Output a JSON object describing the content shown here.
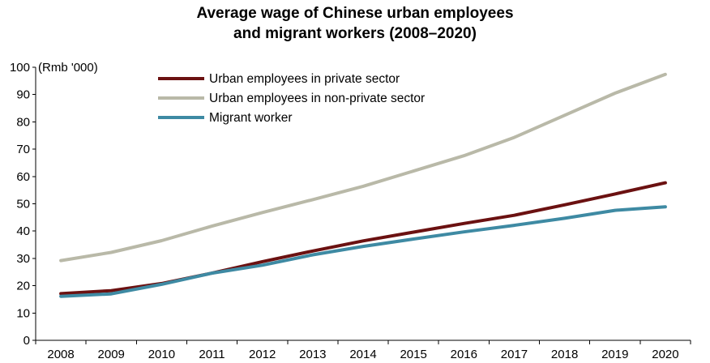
{
  "chart_data": {
    "type": "line",
    "title_lines": [
      "Average wage of Chinese urban employees",
      "and migrant workers (2008–2020)"
    ],
    "y_unit_label": "(Rmb '000)",
    "x": [
      "2008",
      "2009",
      "2010",
      "2011",
      "2012",
      "2013",
      "2014",
      "2015",
      "2016",
      "2017",
      "2018",
      "2019",
      "2020"
    ],
    "ylim": [
      0,
      100
    ],
    "yticks": [
      "0",
      "10",
      "20",
      "30",
      "40",
      "50",
      "60",
      "70",
      "80",
      "90",
      "100"
    ],
    "grid": false,
    "legend_position": "top-left",
    "series": [
      {
        "name": "Urban employees in private sector",
        "color": "#6b1111",
        "values": [
          17.1,
          18.2,
          20.8,
          24.6,
          28.8,
          32.7,
          36.4,
          39.6,
          42.8,
          45.8,
          49.6,
          53.6,
          57.7
        ]
      },
      {
        "name": "Urban employees in non-private sector",
        "color": "#b9b9a8",
        "values": [
          29.2,
          32.2,
          36.5,
          41.8,
          46.8,
          51.5,
          56.4,
          62.0,
          67.6,
          74.3,
          82.4,
          90.5,
          97.4
        ]
      },
      {
        "name": "Migrant worker",
        "color": "#3e8aa3",
        "values": [
          16.1,
          17.0,
          20.5,
          24.6,
          27.5,
          31.3,
          34.4,
          37.1,
          39.7,
          42.1,
          44.7,
          47.6,
          48.9
        ]
      }
    ]
  }
}
